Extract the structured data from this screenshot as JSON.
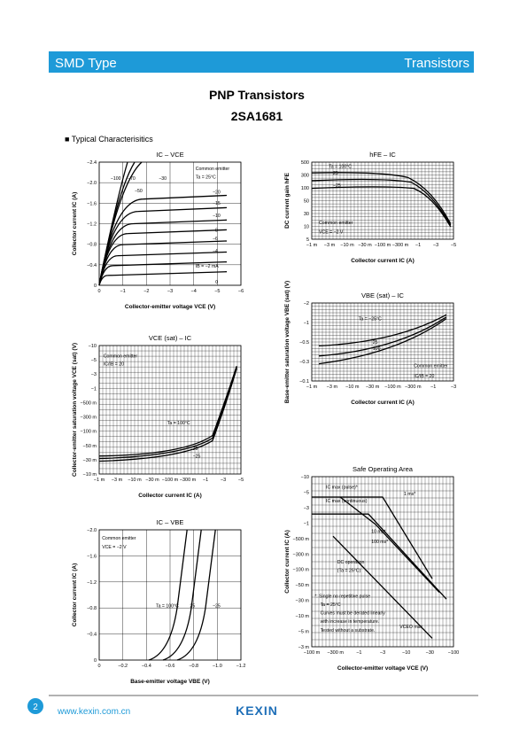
{
  "header": {
    "left": "SMD Type",
    "right": "Transistors"
  },
  "title": "PNP  Transistors",
  "part": "2SA1681",
  "section": "■  Typical  Characterisitics",
  "charts": [
    {
      "title": "IC – VCE",
      "xlabel": "Collector-emitter voltage  VCE  (V)",
      "ylabel": "Collector current   IC   (A)",
      "xticks": [
        "0",
        "−1",
        "−2",
        "−3",
        "−4",
        "−5",
        "−6"
      ],
      "yticks": [
        "−2.4",
        "−2.0",
        "−1.6",
        "−1.2",
        "−0.8",
        "−0.4",
        "0"
      ],
      "notes": [
        "Common emitter",
        "Ta = 25°C",
        "−100",
        "−70",
        "−50",
        "−30",
        "−20",
        "−15",
        "−10",
        "−8",
        "−6",
        "−4",
        "IB = −2 mA",
        "0"
      ]
    },
    {
      "title": "hFE – IC",
      "xlabel": "Collector current   IC   (A)",
      "ylabel": "DC current gain   hFE",
      "xticks": [
        "−1 m",
        "−3 m",
        "−10 m",
        "−30 m",
        "−100 m",
        "−300 m",
        "−1",
        "−3",
        "−5"
      ],
      "yticks": [
        "500",
        "300",
        "100",
        "50",
        "30",
        "10",
        "5"
      ],
      "notes": [
        "Ta = 100°C",
        "25",
        "−25",
        "Common emitter",
        "VCE = −2 V"
      ]
    },
    {
      "title": "VCE (sat) – IC",
      "xlabel": "Collector current   IC   (A)",
      "ylabel": "Collector-emitter saturation voltage  VCE (sat)  (V)",
      "xticks": [
        "−1 m",
        "−3 m",
        "−10 m",
        "−30 m",
        "−100 m",
        "−300 m",
        "−1",
        "−3",
        "−5"
      ],
      "yticks": [
        "−10",
        "−5",
        "−3",
        "−1",
        "−500 m",
        "−300 m",
        "−100 m",
        "−50 m",
        "−30 m",
        "−10 m"
      ],
      "notes": [
        "Common emitter",
        "IC/IB = 20",
        "Ta = 100°C",
        "25",
        "−25"
      ]
    },
    {
      "title": "VBE (sat) – IC",
      "xlabel": "Collector current   IC   (A)",
      "ylabel": "Base-emitter saturation voltage  VBE (sat)  (V)",
      "xticks": [
        "−1 m",
        "−3 m",
        "−10 m",
        "−30 m",
        "−100 m",
        "−300 m",
        "−1",
        "−3"
      ],
      "yticks": [
        "−2",
        "−1",
        "−0.5",
        "−0.3",
        "−0.1"
      ],
      "notes": [
        "Ta = −25°C",
        "25",
        "100",
        "Common emitter",
        "IC/IB = 20"
      ]
    },
    {
      "title": "IC – VBE",
      "xlabel": "Base-emitter voltage   VBE   (V)",
      "ylabel": "Collector current   IC   (A)",
      "xticks": [
        "0",
        "−0.2",
        "−0.4",
        "−0.6",
        "−0.8",
        "−1.0",
        "−1.2"
      ],
      "yticks": [
        "−2.0",
        "−1.6",
        "−1.2",
        "−0.8",
        "−0.4",
        "0"
      ],
      "notes": [
        "Common emitter",
        "VCE = −2 V",
        "Ta = 100°C",
        "25",
        "−25"
      ]
    },
    {
      "title": "Safe Operating Area",
      "xlabel": "Collector-emitter voltage   VCE   (V)",
      "ylabel": "Collector current   IC   (A)",
      "xticks": [
        "−100 m",
        "−300 m",
        "−1",
        "−3",
        "−10",
        "−30",
        "−100"
      ],
      "yticks": [
        "−10",
        "−5",
        "−3",
        "−1",
        "−500 m",
        "−300 m",
        "−100 m",
        "−50 m",
        "−30 m",
        "−10 m",
        "−5 m",
        "−3 m"
      ],
      "notes": [
        "IC max (pulse)*",
        "1 ms*",
        "IC max (continuous)",
        "10 ms*",
        "100 ms*",
        "DC operation",
        "(Ta = 25°C)",
        "*: Single no repetitive pulse",
        "Ta = 25°C",
        "Curves must be derated linearly",
        "with increase in temperature.",
        "Tested without a substrate.",
        "VCEO max"
      ]
    }
  ],
  "footer": {
    "page": "2",
    "url": "www.kexin.com.cn",
    "logo": "KEXIN"
  }
}
